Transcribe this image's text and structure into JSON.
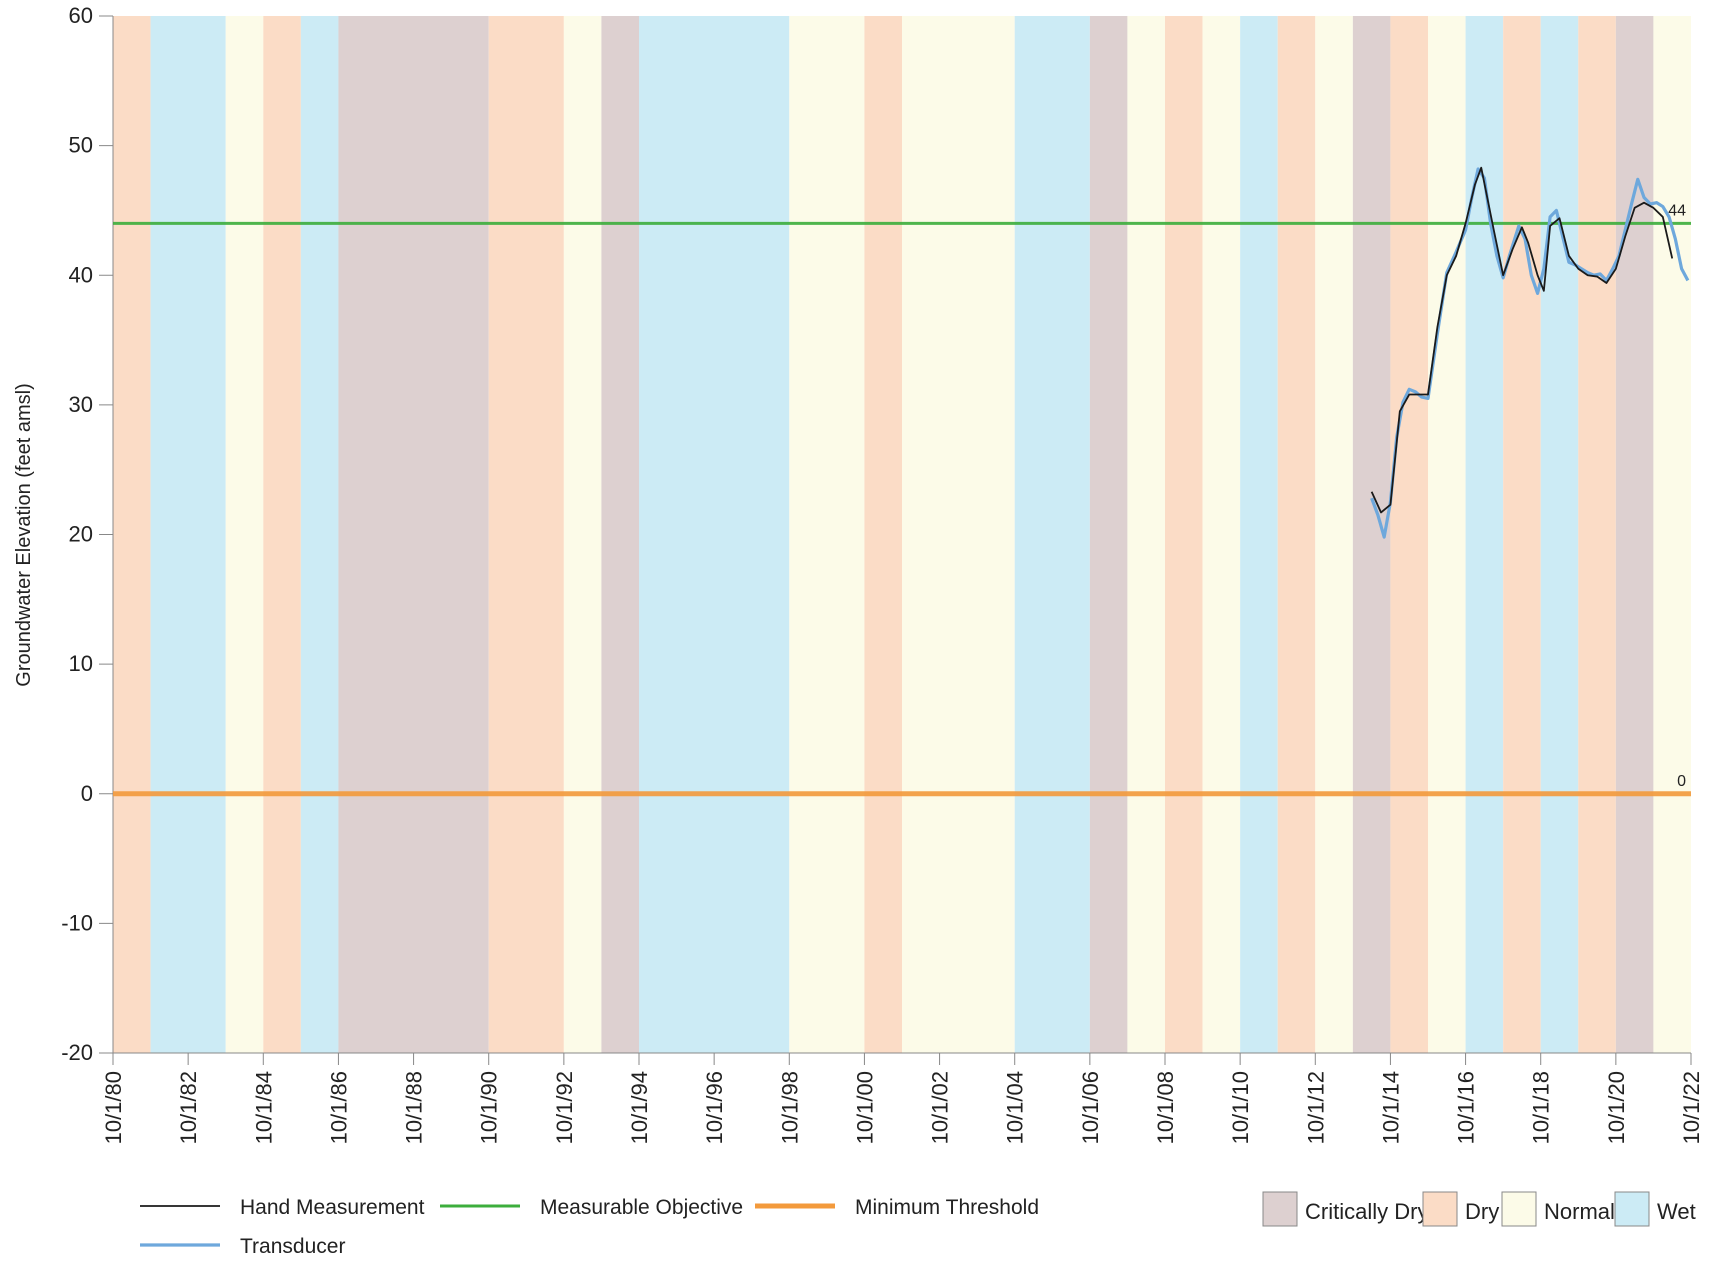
{
  "chart_data": {
    "type": "line",
    "y_label": "Groundwater Elevation (feet amsl)",
    "ylim": [
      -20,
      60
    ],
    "yticks": [
      -20,
      -10,
      0,
      10,
      20,
      30,
      40,
      50,
      60
    ],
    "xlim": [
      "1980-10-01",
      "2022-10-01"
    ],
    "xticks": [
      {
        "value": "1980-10-01",
        "label": "10/1/80"
      },
      {
        "value": "1982-10-01",
        "label": "10/1/82"
      },
      {
        "value": "1984-10-01",
        "label": "10/1/84"
      },
      {
        "value": "1986-10-01",
        "label": "10/1/86"
      },
      {
        "value": "1988-10-01",
        "label": "10/1/88"
      },
      {
        "value": "1990-10-01",
        "label": "10/1/90"
      },
      {
        "value": "1992-10-01",
        "label": "10/1/92"
      },
      {
        "value": "1994-10-01",
        "label": "10/1/94"
      },
      {
        "value": "1996-10-01",
        "label": "10/1/96"
      },
      {
        "value": "1998-10-01",
        "label": "10/1/98"
      },
      {
        "value": "2000-10-01",
        "label": "10/1/00"
      },
      {
        "value": "2002-10-01",
        "label": "10/1/02"
      },
      {
        "value": "2004-10-01",
        "label": "10/1/04"
      },
      {
        "value": "2006-10-01",
        "label": "10/1/06"
      },
      {
        "value": "2008-10-01",
        "label": "10/1/08"
      },
      {
        "value": "2010-10-01",
        "label": "10/1/10"
      },
      {
        "value": "2012-10-01",
        "label": "10/1/12"
      },
      {
        "value": "2014-10-01",
        "label": "10/1/14"
      },
      {
        "value": "2016-10-01",
        "label": "10/1/16"
      },
      {
        "value": "2018-10-01",
        "label": "10/1/18"
      },
      {
        "value": "2020-10-01",
        "label": "10/1/20"
      },
      {
        "value": "2022-10-01",
        "label": "10/1/22"
      }
    ],
    "band_legend": [
      {
        "name": "Critically Dry",
        "color": "#ddd0d0"
      },
      {
        "name": "Dry",
        "color": "#fbdcc6"
      },
      {
        "name": "Normal",
        "color": "#fcfbe8"
      },
      {
        "name": "Wet",
        "color": "#ccebf5"
      }
    ],
    "bands": [
      {
        "start": "1980-10-01",
        "end": "1981-10-01",
        "type": "Dry"
      },
      {
        "start": "1981-10-01",
        "end": "1983-10-01",
        "type": "Wet"
      },
      {
        "start": "1983-10-01",
        "end": "1984-10-01",
        "type": "Normal"
      },
      {
        "start": "1984-10-01",
        "end": "1985-10-01",
        "type": "Dry"
      },
      {
        "start": "1985-10-01",
        "end": "1986-10-01",
        "type": "Wet"
      },
      {
        "start": "1986-10-01",
        "end": "1990-10-01",
        "type": "Critically Dry"
      },
      {
        "start": "1990-10-01",
        "end": "1992-10-01",
        "type": "Dry"
      },
      {
        "start": "1992-10-01",
        "end": "1993-10-01",
        "type": "Normal"
      },
      {
        "start": "1993-10-01",
        "end": "1994-10-01",
        "type": "Critically Dry"
      },
      {
        "start": "1994-10-01",
        "end": "1998-10-01",
        "type": "Wet"
      },
      {
        "start": "1998-10-01",
        "end": "2000-10-01",
        "type": "Normal"
      },
      {
        "start": "2000-10-01",
        "end": "2001-10-01",
        "type": "Dry"
      },
      {
        "start": "2001-10-01",
        "end": "2004-10-01",
        "type": "Normal"
      },
      {
        "start": "2004-10-01",
        "end": "2006-10-01",
        "type": "Wet"
      },
      {
        "start": "2006-10-01",
        "end": "2007-10-01",
        "type": "Critically Dry"
      },
      {
        "start": "2007-10-01",
        "end": "2008-10-01",
        "type": "Normal"
      },
      {
        "start": "2008-10-01",
        "end": "2009-10-01",
        "type": "Dry"
      },
      {
        "start": "2009-10-01",
        "end": "2010-10-01",
        "type": "Normal"
      },
      {
        "start": "2010-10-01",
        "end": "2011-10-01",
        "type": "Wet"
      },
      {
        "start": "2011-10-01",
        "end": "2012-10-01",
        "type": "Dry"
      },
      {
        "start": "2012-10-01",
        "end": "2013-10-01",
        "type": "Normal"
      },
      {
        "start": "2013-10-01",
        "end": "2014-10-01",
        "type": "Critically Dry"
      },
      {
        "start": "2014-10-01",
        "end": "2015-10-01",
        "type": "Dry"
      },
      {
        "start": "2015-10-01",
        "end": "2016-10-01",
        "type": "Normal"
      },
      {
        "start": "2016-10-01",
        "end": "2017-10-01",
        "type": "Wet"
      },
      {
        "start": "2017-10-01",
        "end": "2018-10-01",
        "type": "Dry"
      },
      {
        "start": "2018-10-01",
        "end": "2019-10-01",
        "type": "Wet"
      },
      {
        "start": "2019-10-01",
        "end": "2020-10-01",
        "type": "Dry"
      },
      {
        "start": "2020-10-01",
        "end": "2021-10-01",
        "type": "Critically Dry"
      },
      {
        "start": "2021-10-01",
        "end": "2022-10-01",
        "type": "Normal"
      }
    ],
    "thresholds": [
      {
        "name": "Measurable Objective",
        "color": "#3cae3c",
        "value": 44,
        "label": "44"
      },
      {
        "name": "Minimum Threshold",
        "color": "#f39a3c",
        "value": 0,
        "label": "0"
      }
    ],
    "series": [
      {
        "name": "Hand Measurement",
        "color": "#1a1a1a",
        "x": [
          "2014-04",
          "2014-07",
          "2014-10",
          "2015-01",
          "2015-04",
          "2015-07",
          "2015-10",
          "2016-01",
          "2016-04",
          "2016-07",
          "2016-10",
          "2017-01",
          "2017-03",
          "2017-07",
          "2017-10",
          "2018-01",
          "2018-04",
          "2018-06",
          "2018-09",
          "2018-11",
          "2019-01",
          "2019-04",
          "2019-07",
          "2019-10",
          "2020-01",
          "2020-04",
          "2020-07",
          "2020-10",
          "2021-01",
          "2021-04",
          "2021-07",
          "2021-10",
          "2022-01",
          "2022-04"
        ],
        "values": [
          23.3,
          21.7,
          22.3,
          29.5,
          30.8,
          30.8,
          30.8,
          36,
          40,
          41.5,
          44,
          47,
          48.3,
          43.5,
          40,
          42,
          43.7,
          42.5,
          40,
          38.8,
          43.8,
          44.4,
          41.5,
          40.5,
          40,
          39.9,
          39.4,
          40.5,
          43,
          45.2,
          45.6,
          45.2,
          44.5,
          41.3
        ]
      },
      {
        "name": "Transducer",
        "color": "#6ea8dc",
        "x": [
          "2014-04",
          "2014-06",
          "2014-08",
          "2014-10",
          "2014-12",
          "2015-02",
          "2015-04",
          "2015-06",
          "2015-08",
          "2015-10",
          "2016-01",
          "2016-04",
          "2016-07",
          "2016-10",
          "2016-12",
          "2017-02",
          "2017-04",
          "2017-06",
          "2017-08",
          "2017-10",
          "2017-12",
          "2018-03",
          "2018-05",
          "2018-07",
          "2018-09",
          "2018-11",
          "2019-01",
          "2019-03",
          "2019-05",
          "2019-07",
          "2019-09",
          "2019-11",
          "2020-01",
          "2020-03",
          "2020-05",
          "2020-07",
          "2020-09",
          "2020-11",
          "2021-01",
          "2021-03",
          "2021-05",
          "2021-07",
          "2021-09",
          "2021-11",
          "2022-01",
          "2022-03",
          "2022-05",
          "2022-07",
          "2022-09"
        ],
        "values": [
          22.8,
          21.5,
          19.8,
          22.5,
          27.5,
          30.2,
          31.2,
          31,
          30.6,
          30.5,
          35.5,
          40.2,
          41.8,
          43.5,
          46,
          48.2,
          47.5,
          44,
          41.5,
          39.8,
          41.5,
          43.8,
          42.8,
          40,
          38.6,
          40.5,
          44.5,
          45,
          43,
          41,
          40.8,
          40.5,
          40.2,
          40,
          40.1,
          39.6,
          40.5,
          41.5,
          43.5,
          45.5,
          47.4,
          46,
          45.5,
          45.6,
          45.3,
          44.5,
          42.8,
          40.5,
          39.6
        ]
      }
    ]
  }
}
